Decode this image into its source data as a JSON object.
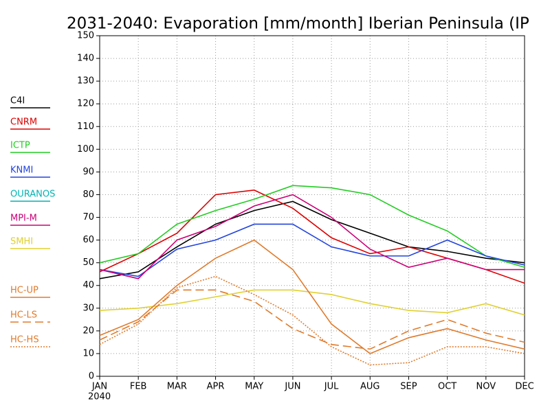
{
  "chart_data": {
    "type": "line",
    "title": "2031-2040: Evaporation [mm/month] Iberian Peninsula (IP",
    "categories": [
      "JAN",
      "FEB",
      "MAR",
      "APR",
      "MAY",
      "JUN",
      "JUL",
      "AUG",
      "SEP",
      "OCT",
      "NOV",
      "DEC"
    ],
    "x_sublabel": "2040",
    "ylim": [
      0,
      150
    ],
    "yticks": [
      0,
      10,
      20,
      30,
      40,
      50,
      60,
      70,
      80,
      90,
      100,
      110,
      120,
      130,
      140,
      150
    ],
    "grid": true,
    "legend": "left",
    "series": [
      {
        "name": "C4I",
        "color": "#000000",
        "style": "solid",
        "values": [
          43,
          46,
          57,
          67,
          73,
          77,
          69,
          63,
          57,
          55,
          52,
          50
        ]
      },
      {
        "name": "CNRM",
        "color": "#dd0000",
        "style": "solid",
        "values": [
          46,
          54,
          63,
          80,
          82,
          74,
          61,
          54,
          57,
          52,
          47,
          41
        ]
      },
      {
        "name": "ICTP",
        "color": "#22cc22",
        "style": "solid",
        "values": [
          50,
          54,
          67,
          73,
          78,
          84,
          83,
          80,
          71,
          64,
          53,
          48
        ]
      },
      {
        "name": "KNMI",
        "color": "#2244dd",
        "style": "solid",
        "values": [
          47,
          44,
          56,
          60,
          67,
          67,
          57,
          53,
          53,
          60,
          53,
          49
        ]
      },
      {
        "name": "OURANOS",
        "color": "#00b4b4",
        "style": "solid",
        "values": [
          null,
          null,
          null,
          null,
          null,
          null,
          null,
          null,
          null,
          null,
          null,
          null
        ]
      },
      {
        "name": "MPI-M",
        "color": "#cc0077",
        "style": "solid",
        "values": [
          47,
          43,
          60,
          66,
          75,
          80,
          70,
          56,
          48,
          52,
          47,
          47
        ]
      },
      {
        "name": "SMHI",
        "color": "#e0d030",
        "style": "solid",
        "values": [
          29,
          30,
          32,
          35,
          38,
          38,
          36,
          32,
          29,
          28,
          32,
          27
        ]
      },
      {
        "name": "HC-UP",
        "color": "#e07a2a",
        "style": "solid",
        "values": [
          18,
          25,
          40,
          52,
          60,
          47,
          23,
          10,
          17,
          21,
          16,
          12
        ]
      },
      {
        "name": "HC-LS",
        "color": "#e07a2a",
        "style": "dashed",
        "values": [
          16,
          24,
          38,
          38,
          33,
          21,
          14,
          12,
          20,
          25,
          19,
          15
        ]
      },
      {
        "name": "HC-HS",
        "color": "#e07a2a",
        "style": "dotted",
        "values": [
          14,
          23,
          39,
          44,
          36,
          27,
          13,
          5,
          6,
          13,
          13,
          10
        ]
      }
    ]
  }
}
